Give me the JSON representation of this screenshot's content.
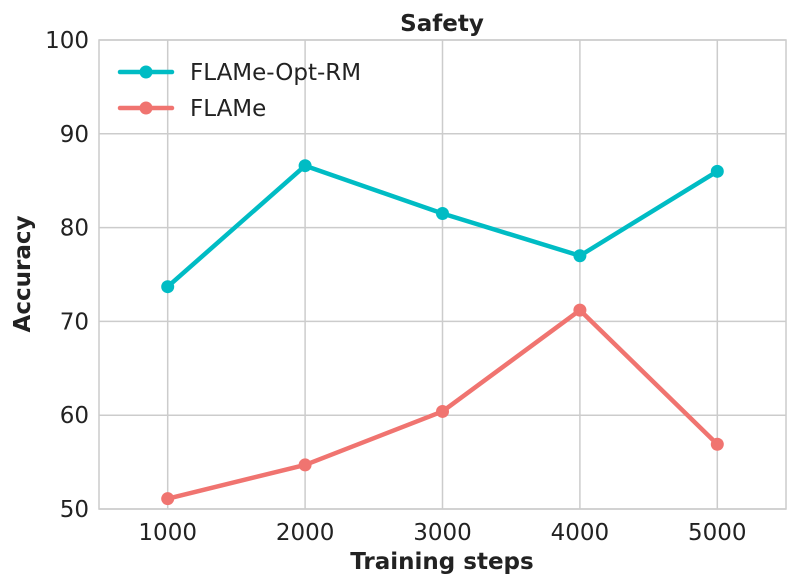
{
  "chart_data": {
    "type": "line",
    "title": "Safety",
    "xlabel": "Training steps",
    "ylabel": "Accuracy",
    "x": [
      1000,
      2000,
      3000,
      4000,
      5000
    ],
    "xticks": [
      "1000",
      "2000",
      "3000",
      "4000",
      "5000"
    ],
    "yticks": [
      "50",
      "60",
      "70",
      "80",
      "90",
      "100"
    ],
    "xlim": [
      500,
      5500
    ],
    "ylim": [
      50,
      100
    ],
    "grid": true,
    "legend_position": "top-left",
    "series": [
      {
        "name": "FLAMe-Opt-RM",
        "color": "#00bcc4",
        "values": [
          73.7,
          86.6,
          81.5,
          77.0,
          86.0
        ]
      },
      {
        "name": "FLAMe",
        "color": "#f07470",
        "values": [
          51.1,
          54.7,
          60.4,
          71.2,
          56.9
        ]
      }
    ]
  }
}
